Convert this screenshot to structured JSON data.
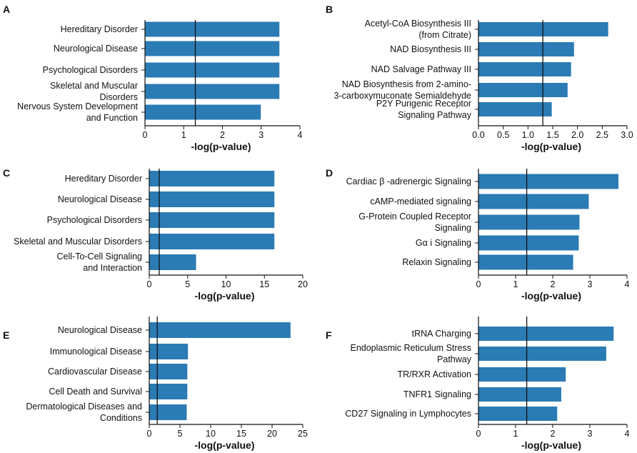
{
  "chart_data": [
    {
      "panel": "A",
      "type": "bar",
      "orientation": "horizontal",
      "categories": [
        [
          "Hereditary Disorder"
        ],
        [
          "Neurological Disease"
        ],
        [
          "Psychological Disorders"
        ],
        [
          "Skeletal and Muscular",
          "Disorders"
        ],
        [
          "Nervous System Development",
          "and Function"
        ]
      ],
      "values": [
        3.47,
        3.47,
        3.47,
        3.47,
        2.99
      ],
      "xlim": [
        0,
        4
      ],
      "xticks": [
        "0",
        "1",
        "2",
        "3",
        "4"
      ],
      "xlabel": "-log(p-value)",
      "threshold": 1.3
    },
    {
      "panel": "B",
      "type": "bar",
      "orientation": "horizontal",
      "categories": [
        [
          "Acetyl-CoA Biosynthesis III",
          "(from Citrate)"
        ],
        [
          "NAD Biosynthesis III"
        ],
        [
          "NAD Salvage Pathway III"
        ],
        [
          "NAD Biosynthesis from 2-amino-",
          "3-carboxymuconate Semialdehyde"
        ],
        [
          "P2Y Purigenic Receptor",
          "Signaling Pathway"
        ]
      ],
      "values": [
        2.62,
        1.93,
        1.87,
        1.8,
        1.48
      ],
      "xlim": [
        0,
        3
      ],
      "xticks": [
        "0.0",
        "0.5",
        "1.0",
        "1.5",
        "2.0",
        "2.5",
        "3.0"
      ],
      "xlabel": "-log(p-value)",
      "threshold": 1.3
    },
    {
      "panel": "C",
      "type": "bar",
      "orientation": "horizontal",
      "categories": [
        [
          "Hereditary Disorder"
        ],
        [
          "Neurological Disease"
        ],
        [
          "Psychological Disorders"
        ],
        [
          "Skeletal and Muscular Disorders"
        ],
        [
          "Cell-To-Cell Signaling",
          "and Interaction"
        ]
      ],
      "values": [
        16.3,
        16.3,
        16.3,
        16.3,
        6.1
      ],
      "xlim": [
        0,
        20
      ],
      "xticks": [
        "0",
        "5",
        "10",
        "15",
        "20"
      ],
      "xlabel": "-log(p-value)",
      "threshold": 1.3
    },
    {
      "panel": "D",
      "type": "bar",
      "orientation": "horizontal",
      "categories": [
        [
          "Cardiac β -adrenergic Signaling"
        ],
        [
          "cAMP-mediated signaling"
        ],
        [
          "G-Protein Coupled Receptor",
          "Signaling"
        ],
        [
          "Gα i Signaling"
        ],
        [
          "Relaxin Signaling"
        ]
      ],
      "values": [
        3.77,
        2.97,
        2.72,
        2.7,
        2.55
      ],
      "xlim": [
        0,
        4
      ],
      "xticks": [
        "0",
        "1",
        "2",
        "3",
        "4"
      ],
      "xlabel": "-log(p-value)",
      "threshold": 1.3
    },
    {
      "panel": "E",
      "type": "bar",
      "orientation": "horizontal",
      "categories": [
        [
          "Neurological Disease"
        ],
        [
          "Immunological Disease"
        ],
        [
          "Cardiovascular Disease"
        ],
        [
          "Cell Death and Survival"
        ],
        [
          "Dermatological Diseases and",
          "Conditions"
        ]
      ],
      "values": [
        23.0,
        6.3,
        6.2,
        6.2,
        6.1
      ],
      "xlim": [
        0,
        25
      ],
      "xticks": [
        "0",
        "5",
        "10",
        "15",
        "20",
        "25"
      ],
      "xlabel": "-log(p-value)",
      "threshold": 1.3
    },
    {
      "panel": "F",
      "type": "bar",
      "orientation": "horizontal",
      "categories": [
        [
          "tRNA Charging"
        ],
        [
          "Endoplasmic Reticulum Stress",
          "Pathway"
        ],
        [
          "TR/RXR Activation"
        ],
        [
          "TNFR1 Signaling"
        ],
        [
          "CD27 Signaling in Lymphocytes"
        ]
      ],
      "values": [
        3.64,
        3.44,
        2.35,
        2.23,
        2.12
      ],
      "xlim": [
        0,
        4
      ],
      "xticks": [
        "0",
        "1",
        "2",
        "3",
        "4"
      ],
      "xlabel": "-log(p-value)",
      "threshold": 1.3
    }
  ],
  "colors": {
    "bar": "#2b7bb4",
    "axis": "#111111",
    "threshold": "#111111"
  }
}
